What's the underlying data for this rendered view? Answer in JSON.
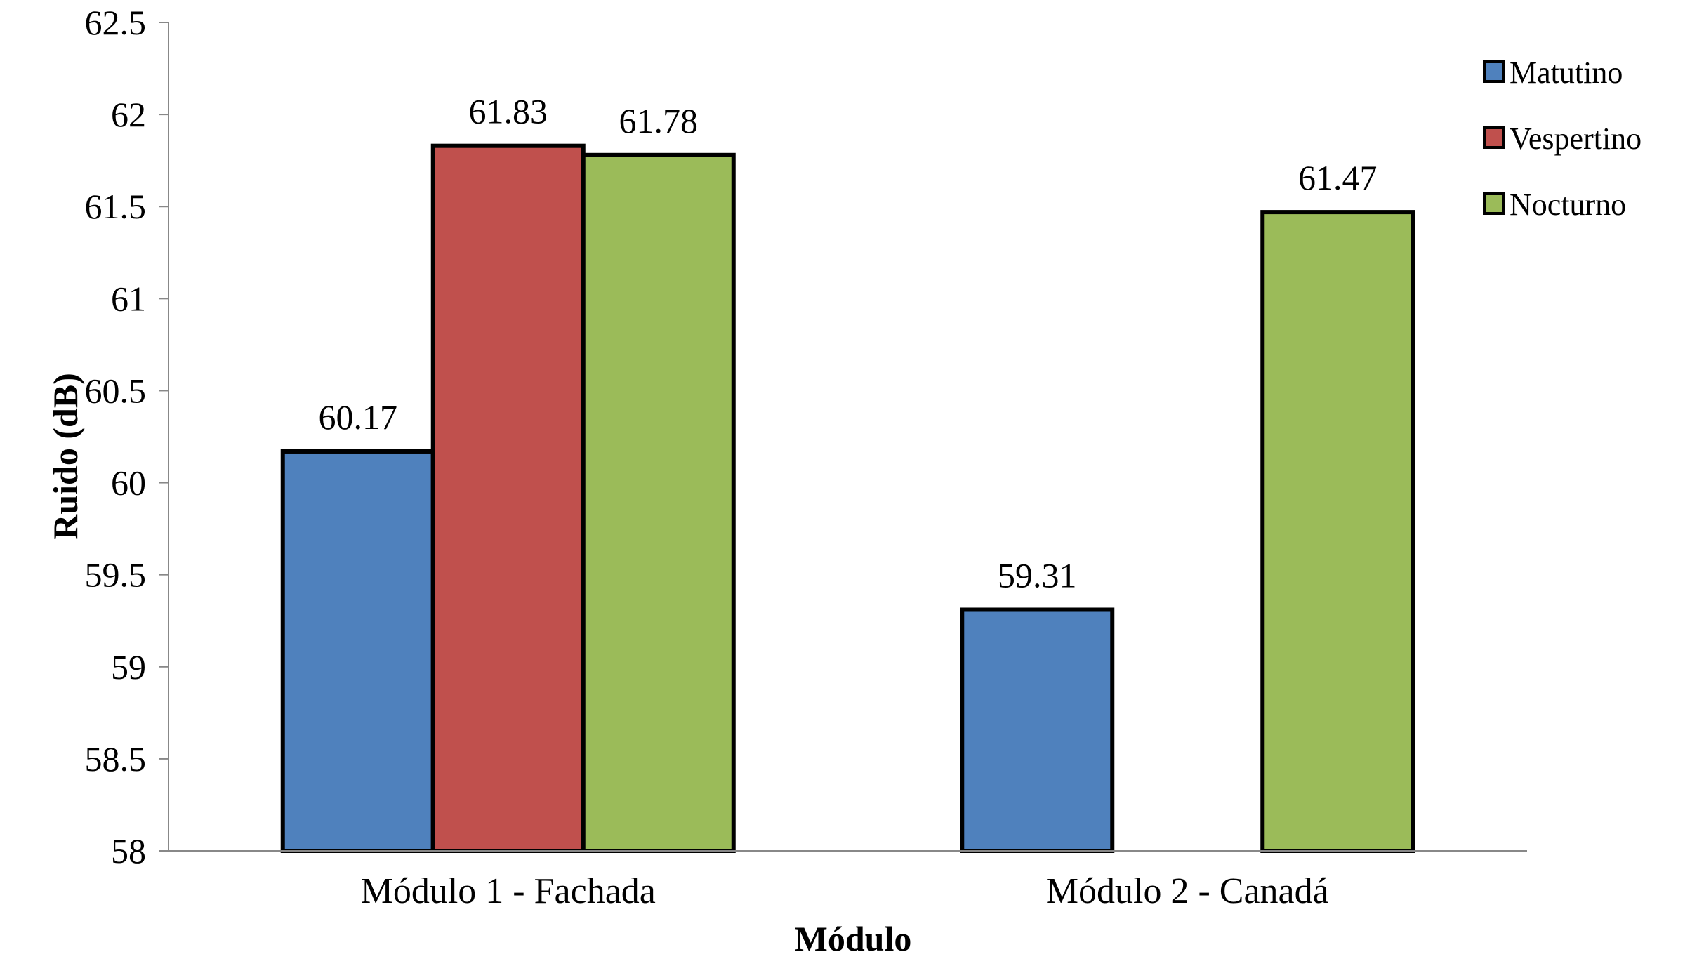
{
  "chart_data": {
    "type": "bar",
    "title": "",
    "xlabel": "Módulo",
    "ylabel": "Ruido (dB)",
    "ylim": [
      58,
      62.5
    ],
    "yticks": [
      58,
      58.5,
      59,
      59.5,
      60,
      60.5,
      61,
      61.5,
      62,
      62.5
    ],
    "ytick_labels": [
      "58",
      "58.5",
      "59",
      "59.5",
      "60",
      "60.5",
      "61",
      "61.5",
      "62",
      "62.5"
    ],
    "categories": [
      "Módulo 1 - Fachada",
      "Módulo 2 - Canadá"
    ],
    "series": [
      {
        "name": "Matutino",
        "color": "#4F81BD",
        "values": [
          60.17,
          59.31
        ],
        "labels": [
          "60.17",
          "59.31"
        ]
      },
      {
        "name": "Vespertino",
        "color": "#C0504D",
        "values": [
          61.83,
          null
        ],
        "labels": [
          "61.83",
          ""
        ]
      },
      {
        "name": "Nocturno",
        "color": "#9BBB59",
        "values": [
          61.78,
          61.47
        ],
        "labels": [
          "61.78",
          "61.47"
        ]
      }
    ],
    "legend_position": "top-right",
    "grid": false
  }
}
